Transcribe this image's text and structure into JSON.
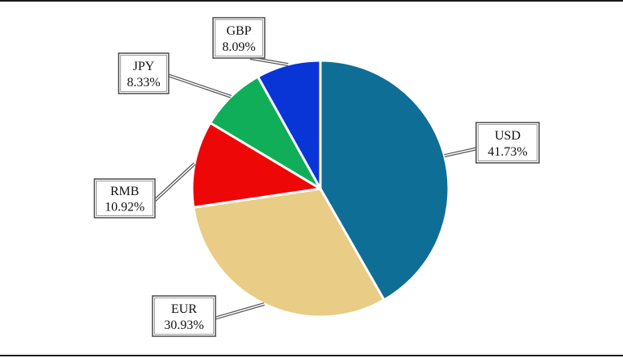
{
  "chart_data": {
    "type": "pie",
    "title": "",
    "slices": [
      {
        "name": "USD",
        "value": 41.73,
        "label": "41.73%",
        "color": "#0f6e96"
      },
      {
        "name": "EUR",
        "value": 30.93,
        "label": "30.93%",
        "color": "#e9cd86"
      },
      {
        "name": "RMB",
        "value": 10.92,
        "label": "10.92%",
        "color": "#ee0707"
      },
      {
        "name": "JPY",
        "value": 8.33,
        "label": "8.33%",
        "color": "#11ae5a"
      },
      {
        "name": "GBP",
        "value": 8.09,
        "label": "8.09%",
        "color": "#0a35d6"
      }
    ],
    "start": "12 o'clock",
    "direction": "clockwise",
    "slice_border": "#ffffff",
    "label_style": "boxed callouts with leader lines"
  }
}
